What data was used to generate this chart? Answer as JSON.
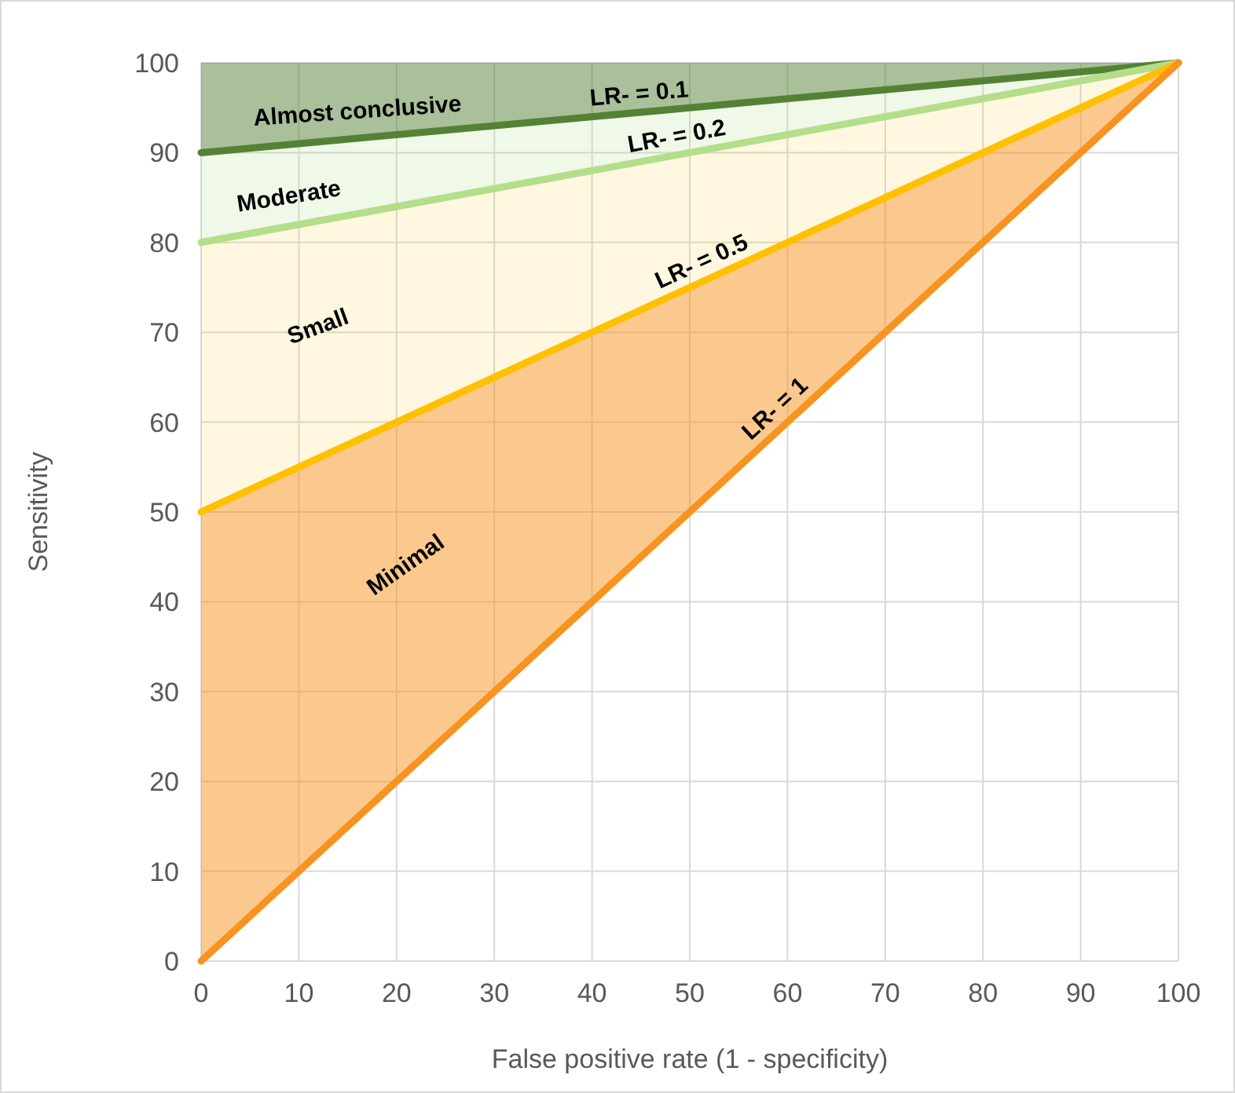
{
  "chart_data": {
    "type": "line",
    "xlabel": "False positive rate (1 - specificity)",
    "ylabel": "Sensitivity",
    "xlim": [
      0,
      100
    ],
    "ylim": [
      0,
      100
    ],
    "xticks": [
      0,
      10,
      20,
      30,
      40,
      50,
      60,
      70,
      80,
      90,
      100
    ],
    "yticks": [
      0,
      10,
      20,
      30,
      40,
      50,
      60,
      70,
      80,
      90,
      100
    ],
    "grid": true,
    "legend": false,
    "series": [
      {
        "name": "LR- = 0.1",
        "x": [
          0,
          50,
          100
        ],
        "values": [
          90,
          95,
          100
        ],
        "lower": [
          90,
          95,
          100
        ],
        "upper": [
          100,
          100,
          100
        ],
        "color": "#548235"
      },
      {
        "name": "LR- = 0.2",
        "x": [
          0,
          50,
          100
        ],
        "values": [
          80,
          90,
          100
        ],
        "lower": [
          80,
          90,
          100
        ],
        "upper": [
          90,
          95,
          100
        ],
        "color": "#b4de8a"
      },
      {
        "name": "LR- = 0.5",
        "x": [
          0,
          50,
          100
        ],
        "values": [
          50,
          75,
          100
        ],
        "lower": [
          50,
          75,
          100
        ],
        "upper": [
          80,
          90,
          100
        ],
        "color": "#ffc000"
      },
      {
        "name": "LR- = 1",
        "x": [
          0,
          50,
          100
        ],
        "values": [
          0,
          50,
          100
        ],
        "lower": [
          0,
          50,
          100
        ],
        "upper": [
          50,
          75,
          100
        ],
        "color": "#f7931e"
      }
    ],
    "annotations": [
      "Almost conclusive",
      "Moderate",
      "Small",
      "Minimal"
    ]
  }
}
